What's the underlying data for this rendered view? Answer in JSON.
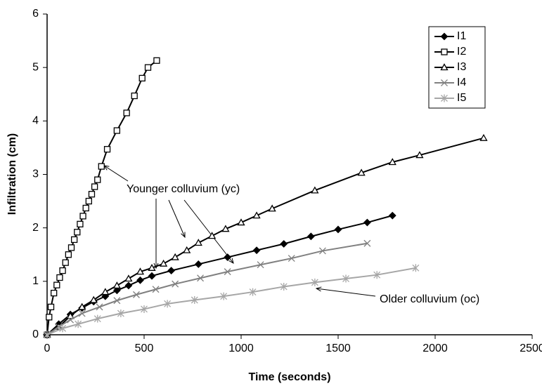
{
  "chart_data": {
    "type": "line",
    "xlabel": "Time (seconds)",
    "ylabel": "Infiltration (cm)",
    "xlim": [
      0,
      2500
    ],
    "xticks": [
      0,
      500,
      1000,
      1500,
      2000,
      2500
    ],
    "ylim": [
      0,
      6
    ],
    "yticks": [
      0,
      1,
      2,
      3,
      4,
      5,
      6
    ],
    "legend": "upper right",
    "annotations": [
      "Younger colluvium (yc)",
      "Older colluvium (oc)"
    ],
    "series": [
      {
        "name": "I1",
        "color": "#000000",
        "marker": "diamond",
        "x": [
          0,
          60,
          120,
          180,
          240,
          300,
          360,
          420,
          480,
          540,
          640,
          780,
          930,
          1080,
          1220,
          1360,
          1500,
          1650,
          1780
        ],
        "values": [
          0,
          0.2,
          0.38,
          0.5,
          0.62,
          0.72,
          0.83,
          0.92,
          1.02,
          1.1,
          1.2,
          1.32,
          1.45,
          1.58,
          1.7,
          1.84,
          1.97,
          2.1,
          2.23
        ]
      },
      {
        "name": "I2",
        "color": "#000000",
        "marker": "square",
        "x": [
          0,
          10,
          20,
          35,
          50,
          65,
          80,
          95,
          110,
          125,
          140,
          155,
          170,
          185,
          200,
          215,
          230,
          245,
          260,
          280,
          310,
          360,
          410,
          450,
          490,
          520,
          565
        ],
        "values": [
          0,
          0.33,
          0.52,
          0.78,
          0.93,
          1.07,
          1.2,
          1.35,
          1.5,
          1.63,
          1.78,
          1.92,
          2.07,
          2.22,
          2.37,
          2.5,
          2.63,
          2.77,
          2.9,
          3.15,
          3.47,
          3.82,
          4.15,
          4.47,
          4.8,
          5.0,
          5.13
        ]
      },
      {
        "name": "I3",
        "color": "#000000",
        "marker": "triangle",
        "x": [
          0,
          60,
          120,
          180,
          240,
          300,
          360,
          420,
          480,
          540,
          600,
          660,
          720,
          780,
          850,
          920,
          1000,
          1080,
          1160,
          1380,
          1620,
          1780,
          1920,
          2250
        ],
        "values": [
          0,
          0.15,
          0.35,
          0.52,
          0.65,
          0.8,
          0.92,
          1.05,
          1.18,
          1.25,
          1.33,
          1.45,
          1.58,
          1.72,
          1.85,
          1.98,
          2.1,
          2.23,
          2.36,
          2.7,
          3.03,
          3.23,
          3.36,
          3.68
        ]
      },
      {
        "name": "I4",
        "color": "#808080",
        "marker": "x",
        "x": [
          0,
          60,
          120,
          180,
          270,
          360,
          460,
          560,
          660,
          790,
          930,
          1100,
          1260,
          1420,
          1650
        ],
        "values": [
          0,
          0.15,
          0.28,
          0.4,
          0.52,
          0.64,
          0.75,
          0.85,
          0.95,
          1.06,
          1.18,
          1.31,
          1.43,
          1.57,
          1.71
        ]
      },
      {
        "name": "I5",
        "color": "#a6a6a6",
        "marker": "star",
        "x": [
          0,
          80,
          160,
          260,
          380,
          500,
          620,
          760,
          910,
          1060,
          1220,
          1380,
          1540,
          1700,
          1900
        ],
        "values": [
          0,
          0.12,
          0.2,
          0.3,
          0.4,
          0.48,
          0.58,
          0.65,
          0.72,
          0.8,
          0.9,
          0.98,
          1.05,
          1.12,
          1.25
        ]
      }
    ]
  }
}
